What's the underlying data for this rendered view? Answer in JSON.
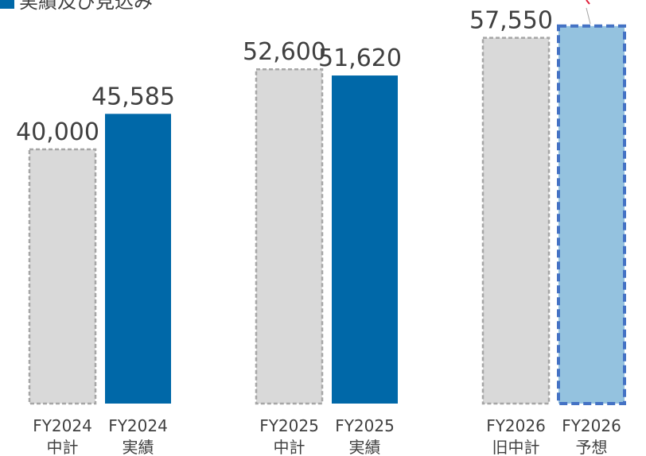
{
  "chart_data": {
    "type": "bar",
    "legend": {
      "label": "実績及び見込み",
      "color": "#0068a8"
    },
    "categories": [
      [
        "FY2024",
        "中計"
      ],
      [
        "FY2024",
        "実績"
      ],
      [
        "FY2025",
        "中計"
      ],
      [
        "FY2025",
        "実績"
      ],
      [
        "FY2026",
        "旧中計"
      ],
      [
        "FY2026",
        "予想"
      ]
    ],
    "values": [
      40000,
      45585,
      52600,
      51620,
      57550,
      59400
    ],
    "value_labels": [
      "40,000",
      "45,585",
      "52,600",
      "51,620",
      "57,550",
      null
    ],
    "colors": [
      "#d9d9d9",
      "#0068a8",
      "#d9d9d9",
      "#0068a8",
      "#d9d9d9",
      "#94c2df"
    ],
    "borders": [
      "#a6a6a6",
      null,
      "#a6a6a6",
      null,
      "#a6a6a6",
      "#4472c4"
    ],
    "ylim": [
      0,
      63500
    ]
  }
}
